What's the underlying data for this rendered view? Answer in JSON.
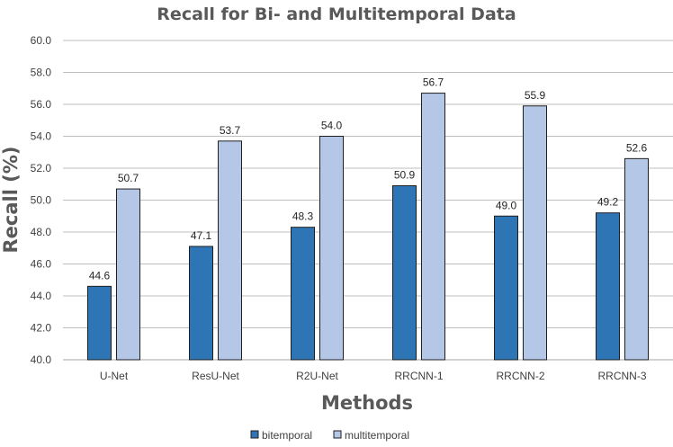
{
  "chart_data": {
    "type": "bar",
    "title": "Recall for Bi- and Multitemporal Data",
    "xlabel": "Methods",
    "ylabel": "Recall (%)",
    "ylim": [
      40.0,
      60.0
    ],
    "ytick_step": 2.0,
    "yticks": [
      "40.0",
      "42.0",
      "44.0",
      "46.0",
      "48.0",
      "50.0",
      "52.0",
      "54.0",
      "56.0",
      "58.0",
      "60.0"
    ],
    "categories": [
      "U-Net",
      "ResU-Net",
      "R2U-Net",
      "RRCNN-1",
      "RRCNN-2",
      "RRCNN-3"
    ],
    "series": [
      {
        "name": "bitemporal",
        "color": "#2e75b6",
        "values": [
          44.6,
          47.1,
          48.3,
          50.9,
          49.0,
          49.2
        ],
        "labels": [
          "44.6",
          "47.1",
          "48.3",
          "50.9",
          "49.0",
          "49.2"
        ]
      },
      {
        "name": "multitemporal",
        "color": "#b4c7e7",
        "values": [
          50.7,
          53.7,
          54.0,
          56.7,
          55.9,
          52.6
        ],
        "labels": [
          "50.7",
          "53.7",
          "54.0",
          "56.7",
          "55.9",
          "52.6"
        ]
      }
    ],
    "grid": true,
    "legend": "bottom-center"
  }
}
